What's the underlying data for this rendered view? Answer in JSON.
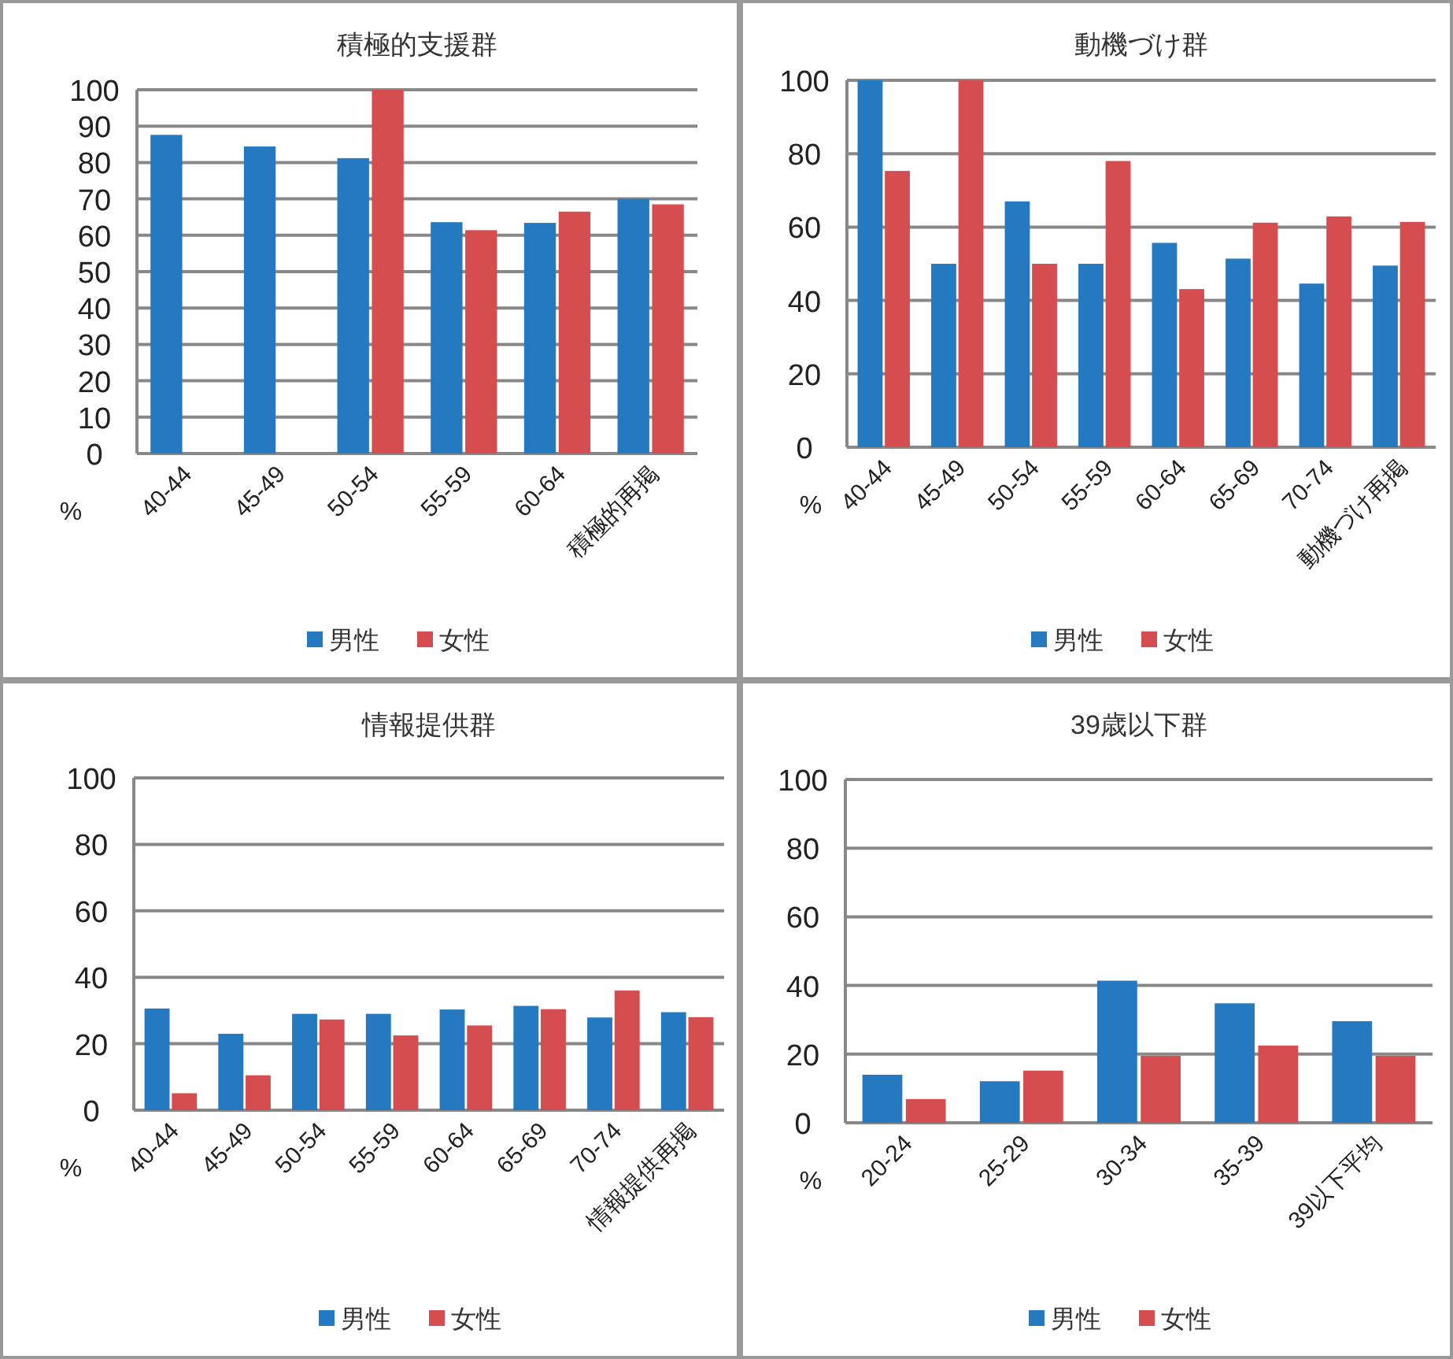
{
  "chart_data": [
    {
      "type": "bar",
      "title": "積極的支援群",
      "ylabel": "%",
      "categories": [
        "40-44",
        "45-49",
        "50-54",
        "55-59",
        "60-64",
        "積極的再掲"
      ],
      "series": [
        {
          "name": "男性",
          "color": "#2479c0",
          "values": [
            87.6,
            84.4,
            81.2,
            63.6,
            63.4,
            70
          ]
        },
        {
          "name": "女性",
          "color": "#d64d4f",
          "values": [
            0,
            0,
            100,
            61.4,
            66.5,
            68.5
          ]
        }
      ],
      "ylim": [
        0,
        100
      ],
      "yticks": [
        0,
        10,
        20,
        30,
        40,
        50,
        60,
        70,
        80,
        90,
        100
      ],
      "grid": "y",
      "legend": "bottom"
    },
    {
      "type": "bar",
      "title": "動機づけ群",
      "ylabel": "%",
      "categories": [
        "40-44",
        "45-49",
        "50-54",
        "55-59",
        "60-64",
        "65-69",
        "70-74",
        "動機づけ再掲"
      ],
      "series": [
        {
          "name": "男性",
          "color": "#2479c0",
          "values": [
            100,
            50,
            67,
            50,
            55.7,
            51.4,
            44.6,
            49.5
          ]
        },
        {
          "name": "女性",
          "color": "#d64d4f",
          "values": [
            75.3,
            100,
            50,
            78,
            43.1,
            61.2,
            62.9,
            61.4
          ]
        }
      ],
      "ylim": [
        0,
        100
      ],
      "yticks": [
        0,
        20,
        40,
        60,
        80,
        100
      ],
      "grid": "y",
      "legend": "bottom"
    },
    {
      "type": "bar",
      "title": "情報提供群",
      "ylabel": "%",
      "categories": [
        "40-44",
        "45-49",
        "50-54",
        "55-59",
        "60-64",
        "65-69",
        "70-74",
        "情報提供再掲"
      ],
      "series": [
        {
          "name": "男性",
          "color": "#2479c0",
          "values": [
            30.6,
            23,
            29,
            29,
            30.3,
            31.4,
            27.9,
            29.5
          ]
        },
        {
          "name": "女性",
          "color": "#d64d4f",
          "values": [
            5.1,
            10.5,
            27.3,
            22.5,
            25.5,
            30.4,
            36,
            28
          ]
        }
      ],
      "ylim": [
        0,
        100
      ],
      "yticks": [
        0,
        20,
        40,
        60,
        80,
        100
      ],
      "grid": "y",
      "legend": "bottom"
    },
    {
      "type": "bar",
      "title": "39歳以下群",
      "ylabel": "%",
      "categories": [
        "20-24",
        "25-29",
        "30-34",
        "35-39",
        "39以下平均"
      ],
      "series": [
        {
          "name": "男性",
          "color": "#2479c0",
          "values": [
            14,
            12.1,
            41.4,
            34.8,
            29.6
          ]
        },
        {
          "name": "女性",
          "color": "#d64d4f",
          "values": [
            6.9,
            15.2,
            19.5,
            22.5,
            19.5
          ]
        }
      ],
      "ylim": [
        0,
        100
      ],
      "yticks": [
        0,
        20,
        40,
        60,
        80,
        100
      ],
      "grid": "y",
      "legend": "bottom"
    }
  ]
}
